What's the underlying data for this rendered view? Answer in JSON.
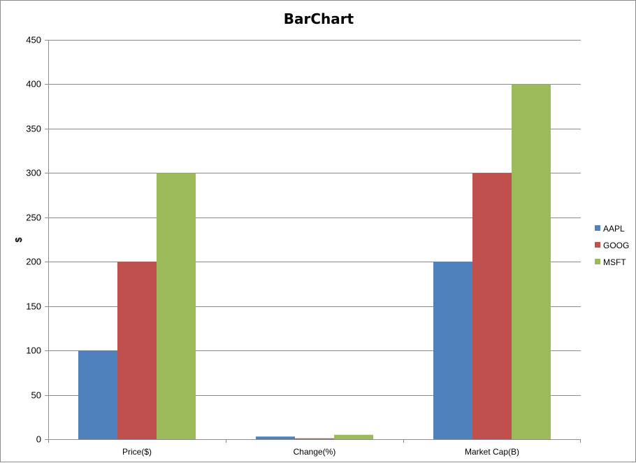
{
  "chart_data": {
    "type": "bar",
    "title": "BarChart",
    "xlabel": "",
    "ylabel": "$",
    "ylim": [
      0,
      450
    ],
    "ytick_step": 50,
    "grid": true,
    "legend_position": "right",
    "categories": [
      "Price($)",
      "Change(%)",
      "Market Cap(B)"
    ],
    "series": [
      {
        "name": "AAPL",
        "color": "#4f81bd",
        "values": [
          100,
          3,
          200
        ]
      },
      {
        "name": "GOOG",
        "color": "#c0504d",
        "values": [
          200,
          1,
          300
        ]
      },
      {
        "name": "MSFT",
        "color": "#9bbb59",
        "values": [
          300,
          5,
          400
        ]
      }
    ]
  }
}
